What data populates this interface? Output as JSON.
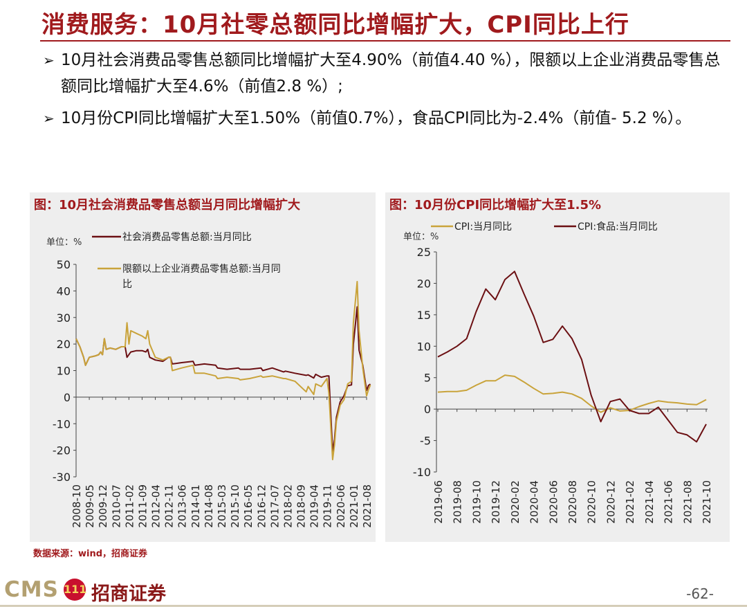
{
  "header": {
    "title": "消费服务：10月社零总额同比增幅扩大，CPI同比上行"
  },
  "bullets": [
    {
      "marker": "➢",
      "text": "10月社会消费品零售总额同比增幅扩大至4.90%（前值4.40 %），限额以上企业消费品零售总额同比增幅扩大至4.6%（前值2.8 %）;"
    },
    {
      "marker": "➢",
      "text": "10月份CPI同比增幅扩大至1.50%（前值0.7%），食品CPI同比为-2.4%（前值- 5.2 %）。"
    }
  ],
  "chart_data": [
    {
      "type": "line",
      "title": "图：10月社会消费品零售总额当月同比增幅扩大",
      "unit_label": "单位：%",
      "ylim": [
        -30,
        50
      ],
      "yticks": [
        "50",
        "40",
        "30",
        "20",
        "10",
        "0",
        "-10",
        "-20",
        "-30"
      ],
      "xtick_labels": [
        "2008-10",
        "2009-05",
        "2009-12",
        "2010-07",
        "2011-02",
        "2011-09",
        "2012-04",
        "2012-11",
        "2013-06",
        "2014-01",
        "2014-08",
        "2015-03",
        "2015-10",
        "2016-05",
        "2016-12",
        "2017-07",
        "2018-02",
        "2018-09",
        "2019-04",
        "2019-11",
        "2020-06",
        "2021-01",
        "2021-08"
      ],
      "legend_placement": "top-left",
      "series": [
        {
          "name": "社会消费品零售总额:当月同比",
          "color": "#6b0f12",
          "points": [
            [
              "2008-10",
              22
            ],
            [
              "2008-12",
              19
            ],
            [
              "2009-02",
              15
            ],
            [
              "2009-03",
              12
            ],
            [
              "2009-05",
              15
            ],
            [
              "2009-08",
              15.5
            ],
            [
              "2009-10",
              16
            ],
            [
              "2009-11",
              17
            ],
            [
              "2009-12",
              16
            ],
            [
              "2010-01",
              22
            ],
            [
              "2010-02",
              18
            ],
            [
              "2010-04",
              18.5
            ],
            [
              "2010-07",
              18
            ],
            [
              "2010-10",
              19
            ],
            [
              "2010-12",
              19
            ],
            [
              "2011-01",
              15
            ],
            [
              "2011-03",
              17
            ],
            [
              "2011-06",
              17.5
            ],
            [
              "2011-09",
              17.5
            ],
            [
              "2011-11",
              17
            ],
            [
              "2011-12",
              18
            ],
            [
              "2012-01",
              15
            ],
            [
              "2012-04",
              14
            ],
            [
              "2012-08",
              13.5
            ],
            [
              "2012-11",
              15
            ],
            [
              "2012-12",
              15
            ],
            [
              "2013-01",
              12.5
            ],
            [
              "2013-06",
              13
            ],
            [
              "2013-12",
              13.5
            ],
            [
              "2014-01",
              12
            ],
            [
              "2014-06",
              12.5
            ],
            [
              "2014-12",
              12
            ],
            [
              "2015-01",
              11
            ],
            [
              "2015-06",
              10.5
            ],
            [
              "2015-12",
              11
            ],
            [
              "2016-01",
              10.5
            ],
            [
              "2016-06",
              10.5
            ],
            [
              "2016-12",
              11
            ],
            [
              "2017-01",
              10
            ],
            [
              "2017-06",
              11
            ],
            [
              "2017-12",
              9.5
            ],
            [
              "2018-01",
              9.8
            ],
            [
              "2018-06",
              9
            ],
            [
              "2018-12",
              8.2
            ],
            [
              "2019-01",
              8.4
            ],
            [
              "2019-04",
              7.2
            ],
            [
              "2019-05",
              8.6
            ],
            [
              "2019-08",
              7.5
            ],
            [
              "2019-11",
              8
            ],
            [
              "2019-12",
              8
            ],
            [
              "2020-02",
              -20.5
            ],
            [
              "2020-03",
              -15.8
            ],
            [
              "2020-04",
              -7.5
            ],
            [
              "2020-06",
              -1.8
            ],
            [
              "2020-08",
              0.5
            ],
            [
              "2020-10",
              4.3
            ],
            [
              "2020-12",
              4.6
            ],
            [
              "2021-01",
              20
            ],
            [
              "2021-03",
              34
            ],
            [
              "2021-04",
              17.7
            ],
            [
              "2021-06",
              12
            ],
            [
              "2021-08",
              2.5
            ],
            [
              "2021-09",
              4.4
            ],
            [
              "2021-10",
              4.9
            ]
          ]
        },
        {
          "name": "限额以上企业消费品零售总额:当月同比",
          "color": "#c9a33a",
          "points": [
            [
              "2008-10",
              22
            ],
            [
              "2008-12",
              19
            ],
            [
              "2009-02",
              15
            ],
            [
              "2009-03",
              12
            ],
            [
              "2009-05",
              15
            ],
            [
              "2009-08",
              15.5
            ],
            [
              "2009-10",
              16
            ],
            [
              "2009-11",
              17
            ],
            [
              "2009-12",
              16
            ],
            [
              "2010-01",
              22
            ],
            [
              "2010-02",
              18
            ],
            [
              "2010-04",
              18.5
            ],
            [
              "2010-07",
              18
            ],
            [
              "2010-10",
              19
            ],
            [
              "2010-12",
              19
            ],
            [
              "2011-01",
              28
            ],
            [
              "2011-02",
              20
            ],
            [
              "2011-03",
              25
            ],
            [
              "2011-06",
              24
            ],
            [
              "2011-09",
              23
            ],
            [
              "2011-11",
              22
            ],
            [
              "2011-12",
              25
            ],
            [
              "2012-01",
              20
            ],
            [
              "2012-04",
              15
            ],
            [
              "2012-08",
              14
            ],
            [
              "2012-11",
              15
            ],
            [
              "2012-12",
              15
            ],
            [
              "2013-01",
              10
            ],
            [
              "2013-06",
              11
            ],
            [
              "2013-12",
              12
            ],
            [
              "2014-01",
              9
            ],
            [
              "2014-06",
              9
            ],
            [
              "2014-12",
              8
            ],
            [
              "2015-01",
              7
            ],
            [
              "2015-06",
              7.5
            ],
            [
              "2015-12",
              7
            ],
            [
              "2016-01",
              6.5
            ],
            [
              "2016-06",
              7
            ],
            [
              "2016-12",
              8
            ],
            [
              "2017-01",
              7.5
            ],
            [
              "2017-06",
              8
            ],
            [
              "2017-12",
              7
            ],
            [
              "2018-01",
              7
            ],
            [
              "2018-06",
              6
            ],
            [
              "2018-12",
              2
            ],
            [
              "2019-01",
              4
            ],
            [
              "2019-04",
              1
            ],
            [
              "2019-05",
              5
            ],
            [
              "2019-08",
              4
            ],
            [
              "2019-11",
              7
            ],
            [
              "2019-12",
              1.5
            ],
            [
              "2020-02",
              -23.5
            ],
            [
              "2020-03",
              -18
            ],
            [
              "2020-04",
              -9
            ],
            [
              "2020-06",
              -3
            ],
            [
              "2020-08",
              -1
            ],
            [
              "2020-10",
              5
            ],
            [
              "2020-12",
              6
            ],
            [
              "2021-01",
              28
            ],
            [
              "2021-03",
              43.5
            ],
            [
              "2021-04",
              25
            ],
            [
              "2021-06",
              11
            ],
            [
              "2021-08",
              0.5
            ],
            [
              "2021-09",
              2.8
            ],
            [
              "2021-10",
              4.6
            ]
          ]
        }
      ]
    },
    {
      "type": "line",
      "title": "图：10月份CPI同比增幅扩大至1.5%",
      "unit_label": "单位：%",
      "ylim": [
        -10,
        25
      ],
      "yticks": [
        "25",
        "20",
        "15",
        "10",
        "5",
        "0",
        "-5",
        "-10"
      ],
      "categories": [
        "2019-06",
        "2019-07",
        "2019-08",
        "2019-09",
        "2019-10",
        "2019-11",
        "2019-12",
        "2020-01",
        "2020-02",
        "2020-03",
        "2020-04",
        "2020-05",
        "2020-06",
        "2020-07",
        "2020-08",
        "2020-09",
        "2020-10",
        "2020-11",
        "2020-12",
        "2021-01",
        "2021-02",
        "2021-03",
        "2021-04",
        "2021-05",
        "2021-06",
        "2021-07",
        "2021-08",
        "2021-09",
        "2021-10"
      ],
      "xtick_labels": [
        "2019-06",
        "2019-08",
        "2019-10",
        "2019-12",
        "2020-02",
        "2020-04",
        "2020-06",
        "2020-08",
        "2020-10",
        "2020-12",
        "2021-02",
        "2021-04",
        "2021-06",
        "2021-08",
        "2021-10"
      ],
      "legend_placement": "top",
      "series": [
        {
          "name": "CPI:当月同比",
          "color": "#c9a33a",
          "values": [
            2.7,
            2.8,
            2.8,
            3.0,
            3.8,
            4.5,
            4.5,
            5.4,
            5.2,
            4.3,
            3.3,
            2.4,
            2.5,
            2.7,
            2.4,
            1.7,
            0.5,
            -0.5,
            0.2,
            -0.3,
            -0.2,
            0.4,
            0.9,
            1.3,
            1.1,
            1.0,
            0.8,
            0.7,
            1.5
          ]
        },
        {
          "name": "CPI:食品:当月同比",
          "color": "#6b0f12",
          "values": [
            8.3,
            9.1,
            10.0,
            11.2,
            15.5,
            19.1,
            17.4,
            20.6,
            21.9,
            18.3,
            14.8,
            10.6,
            11.1,
            13.2,
            11.2,
            7.9,
            2.2,
            -2.0,
            1.2,
            1.6,
            -0.2,
            -0.7,
            -0.7,
            0.3,
            -1.7,
            -3.7,
            -4.1,
            -5.2,
            -2.4
          ]
        }
      ]
    }
  ],
  "source": "数据来源：wind，招商证券",
  "footer": {
    "logo_text": "CMS",
    "logo_mark": "111",
    "logo_cn": "招商证券",
    "page": "-62-"
  }
}
